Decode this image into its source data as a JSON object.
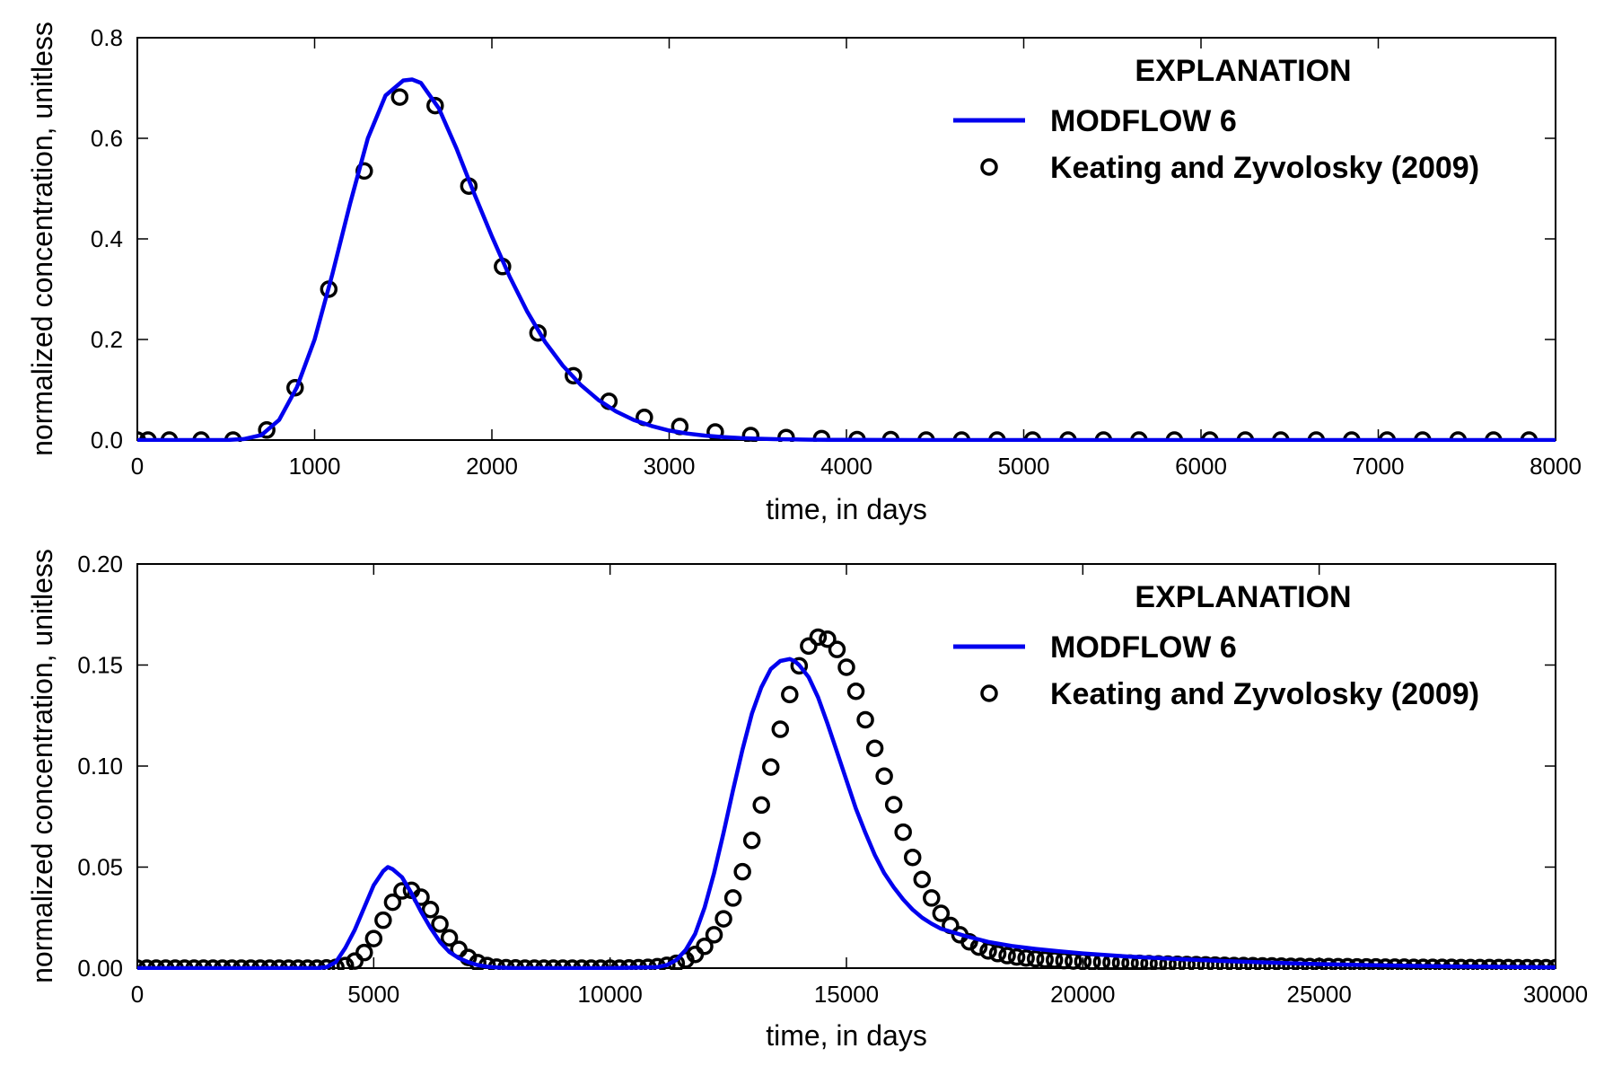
{
  "chart_data": [
    {
      "type": "line",
      "xlabel": "time, in days",
      "ylabel": "normalized concentration, unitless",
      "xlim": [
        0,
        8000
      ],
      "ylim": [
        0,
        0.8
      ],
      "xticks": [
        0,
        1000,
        2000,
        3000,
        4000,
        5000,
        6000,
        7000,
        8000
      ],
      "yticks": [
        "0.0",
        "0.2",
        "0.4",
        "0.6",
        "0.8"
      ],
      "grid": false,
      "legend": {
        "title": "EXPLANATION",
        "position": "top-right",
        "entries": [
          "MODFLOW 6",
          "Keating and Zyvolosky (2009)"
        ]
      },
      "series": [
        {
          "name": "MODFLOW 6",
          "style": "line",
          "color": "#0000ee",
          "x": [
            0,
            500,
            600,
            700,
            800,
            900,
            1000,
            1100,
            1200,
            1300,
            1400,
            1500,
            1550,
            1600,
            1700,
            1800,
            1900,
            2000,
            2100,
            2200,
            2300,
            2400,
            2500,
            2600,
            2700,
            2800,
            2900,
            3000,
            3100,
            3200,
            3300,
            3400,
            3500,
            3600,
            3700,
            3800,
            3900,
            4000,
            4200,
            4500,
            5000,
            6000,
            7000,
            8000
          ],
          "y": [
            0,
            0,
            0.002,
            0.01,
            0.04,
            0.105,
            0.2,
            0.33,
            0.47,
            0.6,
            0.685,
            0.715,
            0.717,
            0.71,
            0.66,
            0.58,
            0.49,
            0.405,
            0.325,
            0.255,
            0.195,
            0.148,
            0.11,
            0.08,
            0.057,
            0.04,
            0.028,
            0.019,
            0.013,
            0.009,
            0.006,
            0.004,
            0.0027,
            0.0018,
            0.0012,
            0.0008,
            0.0005,
            0.0003,
            0.0001,
            0,
            0,
            0,
            0,
            0
          ]
        },
        {
          "name": "Keating and Zyvolosky (2009)",
          "style": "markers",
          "color": "#000000",
          "x": [
            0,
            60,
            180,
            360,
            540,
            730,
            890,
            1080,
            1280,
            1480,
            1680,
            1870,
            2060,
            2260,
            2460,
            2660,
            2860,
            3060,
            3260,
            3460,
            3660,
            3860,
            4060,
            4250,
            4450,
            4650,
            4850,
            5050,
            5250,
            5450,
            5650,
            5850,
            6050,
            6250,
            6450,
            6650,
            6850,
            7050,
            7250,
            7450,
            7650,
            7850
          ],
          "y": [
            0,
            0,
            0,
            0,
            0,
            0.02,
            0.104,
            0.3,
            0.535,
            0.682,
            0.665,
            0.505,
            0.345,
            0.213,
            0.128,
            0.077,
            0.045,
            0.027,
            0.016,
            0.009,
            0.005,
            0.003,
            0.001,
            0.001,
            0,
            0,
            0,
            0,
            0,
            0,
            0,
            0,
            0,
            0,
            0,
            0,
            0,
            0,
            0,
            0,
            0,
            0
          ]
        }
      ]
    },
    {
      "type": "line",
      "xlabel": "time, in days",
      "ylabel": "normalized concentration, unitless",
      "xlim": [
        0,
        30000
      ],
      "ylim": [
        0,
        0.2
      ],
      "xticks": [
        0,
        5000,
        10000,
        15000,
        20000,
        25000,
        30000
      ],
      "yticks": [
        "0.00",
        "0.05",
        "0.10",
        "0.15",
        "0.20"
      ],
      "grid": false,
      "legend": {
        "title": "EXPLANATION",
        "position": "top-right",
        "entries": [
          "MODFLOW 6",
          "Keating and Zyvolosky (2009)"
        ]
      },
      "series": [
        {
          "name": "MODFLOW 6",
          "style": "line",
          "color": "#0000ee",
          "x": [
            0,
            3800,
            4000,
            4200,
            4400,
            4600,
            4800,
            5000,
            5200,
            5300,
            5400,
            5600,
            5800,
            6000,
            6200,
            6400,
            6600,
            6800,
            7000,
            7200,
            7400,
            7600,
            8000,
            10000,
            11000,
            11200,
            11400,
            11600,
            11800,
            12000,
            12200,
            12400,
            12600,
            12800,
            13000,
            13200,
            13400,
            13600,
            13800,
            13900,
            14000,
            14200,
            14400,
            14600,
            14800,
            15000,
            15200,
            15400,
            15600,
            15800,
            16000,
            16200,
            16400,
            16600,
            16800,
            17000,
            17500,
            18000,
            18500,
            19000,
            19500,
            20000,
            21000,
            22000,
            23000,
            24000,
            25000,
            26000,
            27000,
            28000,
            30000
          ],
          "y": [
            0,
            0,
            0.0005,
            0.003,
            0.01,
            0.019,
            0.03,
            0.041,
            0.048,
            0.05,
            0.049,
            0.045,
            0.037,
            0.028,
            0.02,
            0.013,
            0.008,
            0.005,
            0.003,
            0.0015,
            0.0007,
            0.0003,
            0,
            0,
            0.0005,
            0.0015,
            0.004,
            0.009,
            0.017,
            0.03,
            0.047,
            0.067,
            0.088,
            0.108,
            0.126,
            0.139,
            0.148,
            0.152,
            0.153,
            0.152,
            0.15,
            0.144,
            0.134,
            0.121,
            0.107,
            0.093,
            0.079,
            0.067,
            0.056,
            0.047,
            0.04,
            0.034,
            0.029,
            0.025,
            0.022,
            0.0195,
            0.016,
            0.013,
            0.011,
            0.0095,
            0.0083,
            0.0073,
            0.0057,
            0.0045,
            0.0035,
            0.0027,
            0.002,
            0.0015,
            0.0011,
            0.0008,
            0.0004
          ]
        },
        {
          "name": "Keating and Zyvolosky (2009)",
          "style": "markers",
          "color": "#000000",
          "generator": "two_peak_model",
          "x_start": 0,
          "x_step": 200,
          "x_end": 30000,
          "peaks": [
            {
              "amp": 0.039,
              "center": 5700,
              "sigma_left": 500,
              "sigma_right": 650
            },
            {
              "amp": 0.164,
              "center": 14450,
              "sigma_left": 1050,
              "sigma_right": 1250
            }
          ],
          "tail": {
            "start": 15500,
            "amp": 0.012,
            "decay": 3500
          }
        }
      ]
    }
  ]
}
